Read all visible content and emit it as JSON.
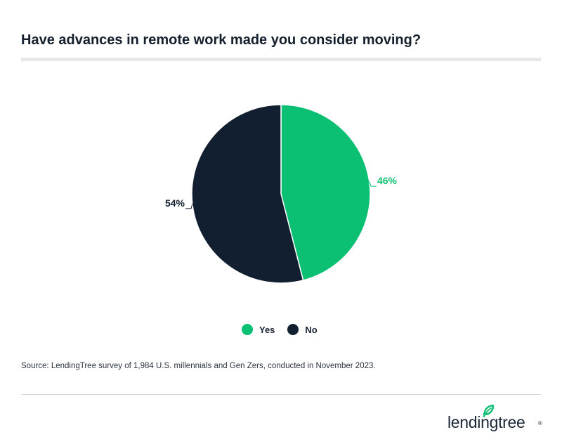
{
  "header": {
    "title": "Have advances in remote work made you consider moving?"
  },
  "chart_data": {
    "type": "pie",
    "title": "Have advances in remote work made you consider moving?",
    "slices": [
      {
        "label": "Yes",
        "value": 46,
        "display": "46%",
        "color": "#0cc073"
      },
      {
        "label": "No",
        "value": 54,
        "display": "54%",
        "color": "#121f30"
      }
    ],
    "legend_position": "bottom"
  },
  "legend": {
    "items": [
      {
        "label": "Yes",
        "color": "#0cc073"
      },
      {
        "label": "No",
        "color": "#121f30"
      }
    ]
  },
  "footer": {
    "source": "Source: LendingTree survey of 1,984 U.S. millennials and Gen Zers, conducted in November 2023.",
    "brand": "lendingtree",
    "registered": "®",
    "leaf_icon": "leaf-icon",
    "brand_accent": "#0cc073"
  }
}
